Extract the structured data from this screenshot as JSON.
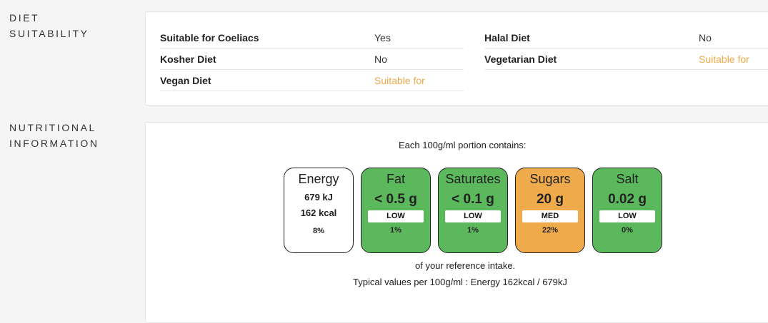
{
  "diet": {
    "section_title_line1": "DIET",
    "section_title_line2": "SUITABILITY",
    "left": [
      {
        "label": "Suitable for Coeliacs",
        "value": "Yes"
      },
      {
        "label": "Kosher Diet",
        "value": "No"
      },
      {
        "label": "Vegan Diet",
        "value": "Suitable for"
      }
    ],
    "right": [
      {
        "label": "Halal Diet",
        "value": "No"
      },
      {
        "label": "Vegetarian Diet",
        "value": "Suitable for"
      }
    ],
    "suitable_color": "#eea94a"
  },
  "nutrition": {
    "section_title_line1": "NUTRITIONAL",
    "section_title_line2": "INFORMATION",
    "portion_text": "Each 100g/ml portion contains:",
    "energy": {
      "name": "Energy",
      "kj": "679 kJ",
      "kcal": "162 kcal",
      "pct": "8%",
      "color": "#ffffff"
    },
    "tiles": [
      {
        "name": "Fat",
        "amount": "< 0.5 g",
        "level": "LOW",
        "pct": "1%",
        "color": "#5cb85c"
      },
      {
        "name": "Saturates",
        "amount": "< 0.1 g",
        "level": "LOW",
        "pct": "1%",
        "color": "#5cb85c"
      },
      {
        "name": "Sugars",
        "amount": "20 g",
        "level": "MED",
        "pct": "22%",
        "color": "#efab4b"
      },
      {
        "name": "Salt",
        "amount": "0.02 g",
        "level": "LOW",
        "pct": "0%",
        "color": "#5cb85c"
      }
    ],
    "reference_text": "of your reference intake.",
    "typical_text": "Typical values per 100g/ml : Energy 162kcal / 679kJ"
  }
}
